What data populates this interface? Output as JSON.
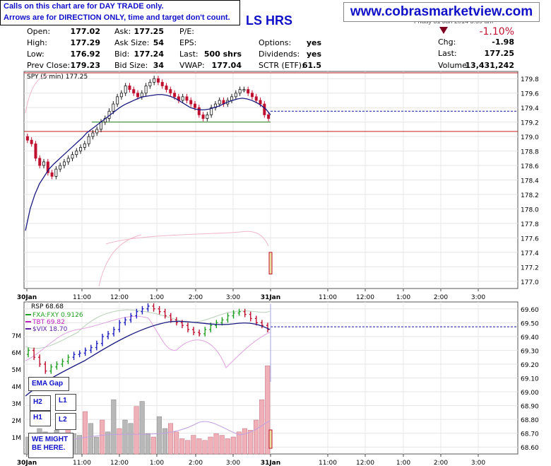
{
  "notes": {
    "line1": "Calls on this chart are for DAY TRADE only.",
    "line2": "Arrows are for DIRECTION ONLY, time and target don't count."
  },
  "website": "www.cobrasmarketview.com",
  "title_fragment": "LS HRS",
  "date_line": "Friday  31 Jan 2014  3:59 am",
  "quote": {
    "rows": [
      {
        "l1": "Open:",
        "v1": "177.02",
        "l2": "Ask:",
        "v2": "177.25",
        "l3": "P/E:",
        "v3": ""
      },
      {
        "l1": "High:",
        "v1": "177.29",
        "l2": "Ask Size:",
        "v2": "54",
        "l3": "EPS:",
        "v3": "",
        "l4": "Options:",
        "v4": "yes"
      },
      {
        "l1": "Low:",
        "v1": "176.92",
        "l2": "Bid:",
        "v2": "177.24",
        "l3": "Last:",
        "v3": "500 shrs",
        "l4": "Dividends:",
        "v4": "yes"
      },
      {
        "l1": "Prev Close:",
        "v1": "179.23",
        "l2": "Bid Size:",
        "v2": "34",
        "l3": "VWAP:",
        "v3": "177.04",
        "l4": "SCTR (ETF):",
        "v4": "61.5"
      }
    ],
    "change_pct": "-1.10%",
    "chg_label": "Chg:",
    "chg_value": "-1.98",
    "last_label": "Last:",
    "last_value": "177.25",
    "volume_label": "Volume:",
    "volume_value": "13,431,242"
  },
  "labels": {
    "ema_gap": "EMA Gap",
    "h2": "H2",
    "l1": "L1",
    "h1": "H1",
    "l2": "L2",
    "might_line1": "WE MIGHT",
    "might_line2": "BE HERE."
  },
  "colors": {
    "up_candle": "#20a020",
    "down_candle": "#c01030",
    "blue_candle": "#2020c0",
    "ema": "#1a1a80",
    "hline_red": "#c02020",
    "hline_green": "#208020",
    "dashed": "#1010a0",
    "accent_title": "#1010c8"
  },
  "chart_data": [
    {
      "type": "line",
      "title": "SPY (5 min) 177.25",
      "x_ticks": [
        "30Jan",
        "11:00",
        "12:00",
        "1:00",
        "2:00",
        "3:00",
        "31Jan",
        "11:00",
        "12:00",
        "1:00",
        "2:00",
        "3:00"
      ],
      "y_ticks": [
        179.8,
        179.6,
        179.4,
        179.2,
        179.0,
        178.8,
        178.6,
        178.4,
        178.2,
        178.0,
        177.8,
        177.6,
        177.4,
        177.2,
        177.0
      ],
      "y_tick_labels": [
        "179.8",
        "179.6",
        "179.4",
        "179.2",
        "179.0",
        "178.8",
        "178.6",
        "178.4",
        "178.2",
        "178.0",
        "177.8",
        "177.6",
        "177.4",
        "177.2",
        "177.0"
      ],
      "ylim": [
        176.9,
        179.9
      ],
      "grid": true,
      "series": [
        {
          "name": "SPY (5 min)",
          "values": [
            178.95,
            178.9,
            178.7,
            178.6,
            178.65,
            178.5,
            178.45,
            178.55,
            178.6,
            178.65,
            178.7,
            178.75,
            178.8,
            178.85,
            178.9,
            179.0,
            179.05,
            179.1,
            179.2,
            179.25,
            179.35,
            179.45,
            179.55,
            179.6,
            179.7,
            179.65,
            179.6,
            179.55,
            179.6,
            179.7,
            179.75,
            179.8,
            179.75,
            179.7,
            179.65,
            179.6,
            179.55,
            179.5,
            179.55,
            179.5,
            179.45,
            179.4,
            179.3,
            179.25,
            179.3,
            179.4,
            179.45,
            179.5,
            179.45,
            179.5,
            179.55,
            179.6,
            179.65,
            179.65,
            179.6,
            179.55,
            179.5,
            179.45,
            179.3,
            179.25
          ]
        },
        {
          "name": "EMA",
          "values": [
            177.7,
            178.0,
            178.2,
            178.35,
            178.45,
            178.55,
            178.62,
            178.68,
            178.74,
            178.8,
            178.86,
            178.92,
            178.98,
            179.05,
            179.1,
            179.15,
            179.2,
            179.25,
            179.3,
            179.35,
            179.4,
            179.44,
            179.47,
            179.5,
            179.53,
            179.55,
            179.56,
            179.57,
            179.58,
            179.58,
            179.57,
            179.55,
            179.52,
            179.48,
            179.44,
            179.4,
            179.38,
            179.37,
            179.37,
            179.38,
            179.4,
            179.42,
            179.45,
            179.48,
            179.5,
            179.52,
            179.53,
            179.52,
            179.5,
            179.47,
            179.43,
            179.38,
            179.3
          ]
        }
      ],
      "hlines": [
        179.88,
        179.07
      ],
      "dashed_level": 179.2,
      "last_candle": [
        177.4,
        177.1
      ]
    },
    {
      "type": "line",
      "title": "RSP 68.68",
      "legend": [
        {
          "name": "FXA:FXY 0.9126",
          "color": "#20a020"
        },
        {
          "name": "TBT 69.82",
          "color": "#c020c0"
        },
        {
          "name": "$VIX 18.70",
          "color": "#6020a0"
        }
      ],
      "x_ticks": [
        "30Jan",
        "11:00",
        "12:00",
        "1:00",
        "2:00",
        "3:00",
        "31Jan",
        "11:00",
        "12:00",
        "1:00",
        "2:00",
        "3:00"
      ],
      "y_ticks": [
        69.6,
        69.5,
        69.4,
        69.3,
        69.2,
        69.1,
        69.0,
        68.9,
        68.8,
        68.7,
        68.6
      ],
      "y_tick_labels": [
        "69.60",
        "69.50",
        "69.40",
        "69.30",
        "69.20",
        "69.10",
        "69.00",
        "68.90",
        "68.80",
        "68.70",
        "68.60"
      ],
      "vol_ticks": [
        "7M",
        "6M",
        "5M",
        "4M",
        "3M",
        "2M",
        "1M"
      ],
      "ylim": [
        68.55,
        69.65
      ],
      "grid": true,
      "series": [
        {
          "name": "RSP",
          "values": [
            69.3,
            69.25,
            69.2,
            69.15,
            69.18,
            69.2,
            69.22,
            69.25,
            69.27,
            69.28,
            69.3,
            69.32,
            69.35,
            69.4,
            69.42,
            69.45,
            69.5,
            69.52,
            69.55,
            69.58,
            69.6,
            69.62,
            69.6,
            69.58,
            69.55,
            69.52,
            69.5,
            69.48,
            69.45,
            69.43,
            69.42,
            69.45,
            69.48,
            69.5,
            69.52,
            69.55,
            69.57,
            69.58,
            69.56,
            69.53,
            69.5,
            69.48,
            69.45
          ]
        }
      ],
      "dashed_level": 69.47,
      "volume_M": [
        1.0,
        1.2,
        1.5,
        1.3,
        1.1,
        1.4,
        1.0,
        1.8,
        1.2,
        1.1,
        2.5,
        1.8,
        1.0,
        2.0,
        1.3,
        3.2,
        1.5,
        2.0,
        1.8,
        2.8,
        3.1,
        1.2,
        1.0,
        2.2,
        1.5,
        1.8,
        1.3,
        0.9,
        0.8,
        1.1,
        0.9,
        0.8,
        1.0,
        1.2,
        1.1,
        0.9,
        1.0,
        1.3,
        1.5,
        1.4,
        2.0,
        3.2,
        5.2
      ]
    }
  ]
}
